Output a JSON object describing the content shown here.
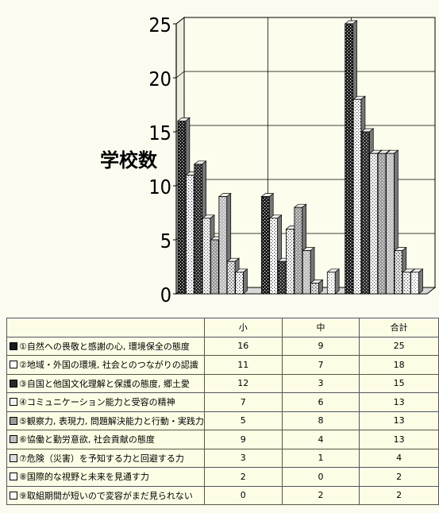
{
  "chart_data": {
    "type": "bar",
    "title": "",
    "xlabel": "",
    "ylabel": "学校数",
    "ylim": [
      0,
      25
    ],
    "yticks": [
      "0",
      "5",
      "10",
      "15",
      "20",
      "25"
    ],
    "grid": true,
    "categories": [
      "小",
      "中",
      "合計"
    ],
    "series": [
      {
        "name": "①自然への畏敬と感謝の心, 環境保全の態度",
        "values": [
          16,
          9,
          25
        ],
        "fill": "#1a1a1a",
        "dots": "#ffffff"
      },
      {
        "name": "②地域・外国の環境, 社会とのつながりの認識",
        "values": [
          11,
          7,
          18
        ],
        "fill": "#ffffff",
        "dots": "#333333"
      },
      {
        "name": "③自国と他国文化理解と保護の態度, 郷土愛",
        "values": [
          12,
          3,
          15
        ],
        "fill": "#2a2a2a",
        "dots": "#e8e8e8"
      },
      {
        "name": "④コミュニケーション能力と受容の精神",
        "values": [
          7,
          6,
          13
        ],
        "fill": "#f2f2f2",
        "dots": "#555555"
      },
      {
        "name": "⑤観察力, 表現力, 問題解決能力と行動・実践力",
        "values": [
          5,
          8,
          13
        ],
        "fill": "#9a9a9a",
        "dots": "#ffffff"
      },
      {
        "name": "⑥協働と勤労意欲, 社会貢献の態度",
        "values": [
          9,
          4,
          13
        ],
        "fill": "#bdbdbd",
        "dots": "#ffffff"
      },
      {
        "name": "⑦危険（災害）を予知する力と回避する力",
        "values": [
          3,
          1,
          4
        ],
        "fill": "#e0e0e0",
        "dots": "#333333"
      },
      {
        "name": "⑧国際的な視野と未来を見通す力",
        "values": [
          2,
          0,
          2
        ],
        "fill": "#f8f8f8",
        "dots": "#444444"
      },
      {
        "name": "⑨取組期間が短いので変容がまだ見られない",
        "values": [
          0,
          2,
          2
        ],
        "fill": "#ffffff",
        "dots": "#777777"
      }
    ]
  }
}
